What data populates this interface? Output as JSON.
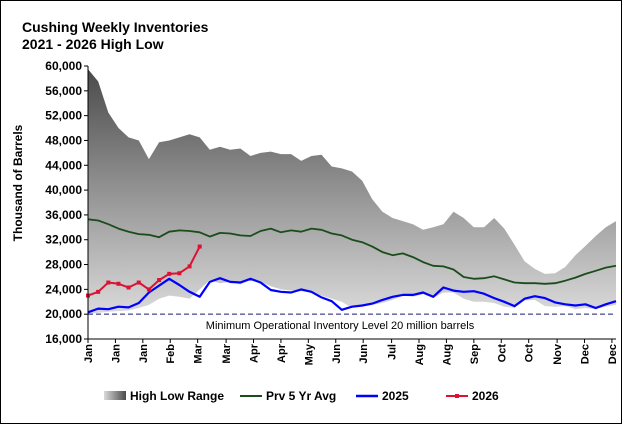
{
  "chart_data": {
    "type": "line",
    "title": "Cushing Weekly Inventories",
    "subtitle": "2021 - 2026 High Low",
    "ylabel": "Thousand of Barrels",
    "xlabel": "",
    "ylim": [
      16000,
      60000
    ],
    "yticks": [
      16000,
      20000,
      24000,
      28000,
      32000,
      36000,
      40000,
      44000,
      48000,
      52000,
      56000,
      60000
    ],
    "ytick_labels": [
      "16,000",
      "20,000",
      "24,000",
      "28,000",
      "32,000",
      "36,000",
      "40,000",
      "44,000",
      "48,000",
      "52,000",
      "56,000",
      "60,000"
    ],
    "x_tick_labels": [
      "Jan",
      "Jan",
      "Jan",
      "Feb",
      "Mar",
      "Mar",
      "Apr",
      "Apr",
      "May",
      "Jun",
      "Jun",
      "Jul",
      "Aug",
      "Aug",
      "Sep",
      "Oct",
      "Oct",
      "Nov",
      "Dec",
      "Dec"
    ],
    "x_tick_weeks": [
      1,
      3.7,
      6.4,
      9.1,
      11.8,
      14.6,
      17.3,
      20,
      22.7,
      25.4,
      28.1,
      30.9,
      33.6,
      36.3,
      39,
      41.7,
      44.4,
      47.2,
      49.9,
      52.6
    ],
    "week_range": [
      1,
      53
    ],
    "grid": false,
    "legend_position": "bottom",
    "annotation": "Minimum Operational Inventory Level 20 million barrels",
    "min_level": 20000,
    "colors": {
      "band_dark": "#4d4d4d",
      "band_light": "#d0d0d0",
      "avg": "#1a4d1a",
      "y2025": "#0000ff",
      "y2026": "#dd1133",
      "min_line": "#1a1a6e",
      "background": "#ffffff"
    },
    "legend": [
      {
        "label": "High Low Range",
        "key": "range"
      },
      {
        "label": "Prv 5 Yr Avg",
        "key": "avg"
      },
      {
        "label": "2025",
        "key": "y2025"
      },
      {
        "label": "2026",
        "key": "y2026"
      }
    ],
    "series": [
      {
        "name": "High Low Range",
        "key": "range",
        "high": [
          59500,
          57500,
          52500,
          50000,
          48500,
          48000,
          45000,
          47700,
          48000,
          48500,
          49000,
          48500,
          46500,
          47000,
          46500,
          46700,
          45500,
          46000,
          46200,
          45800,
          45800,
          44700,
          45500,
          45700,
          43800,
          43500,
          43000,
          41500,
          38500,
          36500,
          35500,
          35000,
          34500,
          33600,
          34000,
          34500,
          36500,
          35500,
          34000,
          34000,
          35500,
          33800,
          31200,
          28500,
          27300,
          26500,
          26600,
          27600,
          29500,
          31000,
          32600,
          34000,
          35000
        ],
        "low": [
          20000,
          20200,
          20400,
          20500,
          20600,
          21000,
          21500,
          22500,
          23000,
          22800,
          22500,
          24000,
          25500,
          25000,
          25200,
          24800,
          25500,
          25200,
          24500,
          24000,
          23800,
          23700,
          23500,
          23000,
          22500,
          22000,
          21000,
          21200,
          21500,
          21800,
          22300,
          23000,
          22800,
          23200,
          22600,
          23500,
          23500,
          22500,
          22000,
          22000,
          21800,
          21200,
          21000,
          22200,
          22300,
          21300,
          21200,
          21300,
          20800,
          21000,
          20800,
          21200,
          21500
        ]
      },
      {
        "name": "Prv 5 Yr Avg",
        "key": "avg",
        "values": [
          35300,
          35100,
          34500,
          33800,
          33300,
          32900,
          32800,
          32400,
          33300,
          33500,
          33400,
          33200,
          32500,
          33100,
          33000,
          32700,
          32600,
          33400,
          33800,
          33200,
          33500,
          33300,
          33800,
          33600,
          33000,
          32700,
          32000,
          31600,
          30900,
          30000,
          29500,
          29800,
          29200,
          28400,
          27800,
          27700,
          27200,
          26000,
          25700,
          25800,
          26100,
          25600,
          25100,
          25000,
          25000,
          24900,
          25000,
          25400,
          25900,
          26500,
          27000,
          27500,
          27800
        ]
      },
      {
        "name": "2025",
        "key": "y2025",
        "values": [
          20300,
          20900,
          20800,
          21200,
          21100,
          21800,
          23500,
          24600,
          25700,
          24700,
          23600,
          22800,
          25200,
          25800,
          25200,
          25100,
          25700,
          25100,
          23900,
          23600,
          23500,
          24000,
          23600,
          22700,
          22100,
          20700,
          21200,
          21400,
          21700,
          22300,
          22800,
          23100,
          23100,
          23500,
          22800,
          24300,
          23800,
          23600,
          23700,
          23300,
          22600,
          22000,
          21300,
          22500,
          22900,
          22600,
          21900,
          21600,
          21400,
          21600,
          21000,
          21600,
          22100
        ]
      },
      {
        "name": "2026",
        "key": "y2026",
        "values": [
          23000,
          23600,
          25100,
          24900,
          24300,
          25100,
          24000,
          25500,
          26500,
          26600,
          27700,
          30900
        ]
      }
    ]
  }
}
